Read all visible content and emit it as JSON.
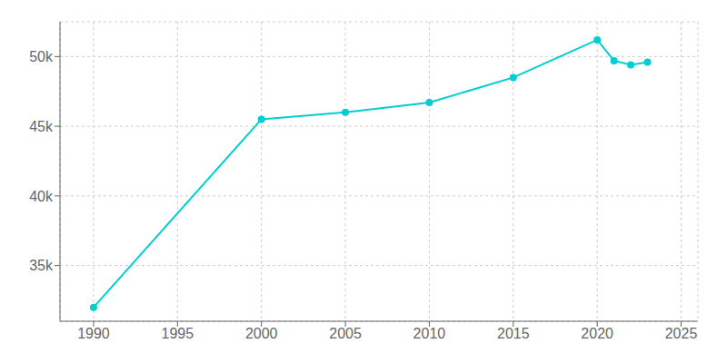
{
  "chart_data": {
    "type": "line",
    "x": [
      1990,
      2000,
      2005,
      2010,
      2015,
      2020,
      2021,
      2022,
      2023
    ],
    "values": [
      32000,
      45500,
      46000,
      46700,
      48500,
      51200,
      49700,
      49400,
      49600
    ],
    "color": "#00CED1",
    "marker": "circle",
    "xlim": [
      1988,
      2026
    ],
    "ylim": [
      31000,
      52500
    ],
    "xticks": [
      1990,
      1995,
      2000,
      2005,
      2010,
      2015,
      2020,
      2025
    ],
    "yticks": [
      {
        "value": 35000,
        "label": "35k"
      },
      {
        "value": 40000,
        "label": "40k"
      },
      {
        "value": 45000,
        "label": "45k"
      },
      {
        "value": 50000,
        "label": "50k"
      }
    ],
    "grid": true
  }
}
